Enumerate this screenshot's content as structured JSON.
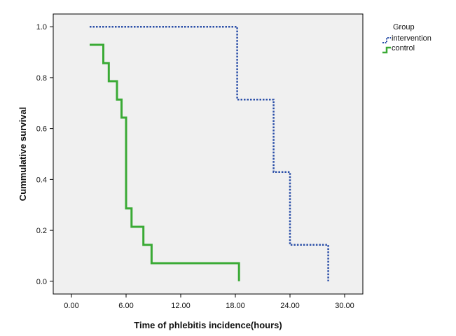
{
  "chart_data": {
    "type": "line",
    "step": true,
    "title": "",
    "xlabel": "Time of phlebitis incidence(hours)",
    "ylabel": "Cummulative survival",
    "xlim": [
      -2,
      32
    ],
    "ylim": [
      -0.05,
      1.05
    ],
    "x_ticks": [
      0,
      6,
      12,
      18,
      24,
      30
    ],
    "x_tick_labels": [
      "0.00",
      "6.00",
      "12.00",
      "18.00",
      "24.00",
      "30.00"
    ],
    "y_ticks": [
      0,
      0.2,
      0.4,
      0.6,
      0.8,
      1.0
    ],
    "y_tick_labels": [
      "0.0",
      "0.2",
      "0.4",
      "0.6",
      "0.8",
      "1.0"
    ],
    "grid": false,
    "legend": {
      "title": "Group",
      "placement": "top-right-outside"
    },
    "series": [
      {
        "name": "intervention",
        "color": "#2b4fa8",
        "line_style": "dotted",
        "points": [
          [
            2.0,
            1.0
          ],
          [
            18.2,
            1.0
          ],
          [
            18.2,
            0.714
          ],
          [
            22.2,
            0.714
          ],
          [
            22.2,
            0.429
          ],
          [
            24.0,
            0.429
          ],
          [
            24.0,
            0.143
          ],
          [
            28.2,
            0.143
          ],
          [
            28.2,
            0.0
          ]
        ]
      },
      {
        "name": "control",
        "color": "#3aaa35",
        "line_style": "solid",
        "points": [
          [
            2.0,
            0.929
          ],
          [
            3.5,
            0.929
          ],
          [
            3.5,
            0.857
          ],
          [
            4.1,
            0.857
          ],
          [
            4.1,
            0.786
          ],
          [
            5.0,
            0.786
          ],
          [
            5.0,
            0.714
          ],
          [
            5.5,
            0.714
          ],
          [
            5.5,
            0.643
          ],
          [
            6.0,
            0.643
          ],
          [
            6.0,
            0.286
          ],
          [
            6.6,
            0.286
          ],
          [
            6.6,
            0.214
          ],
          [
            7.9,
            0.214
          ],
          [
            7.9,
            0.143
          ],
          [
            8.8,
            0.143
          ],
          [
            8.8,
            0.071
          ],
          [
            18.4,
            0.071
          ],
          [
            18.4,
            0.0
          ]
        ]
      }
    ]
  }
}
